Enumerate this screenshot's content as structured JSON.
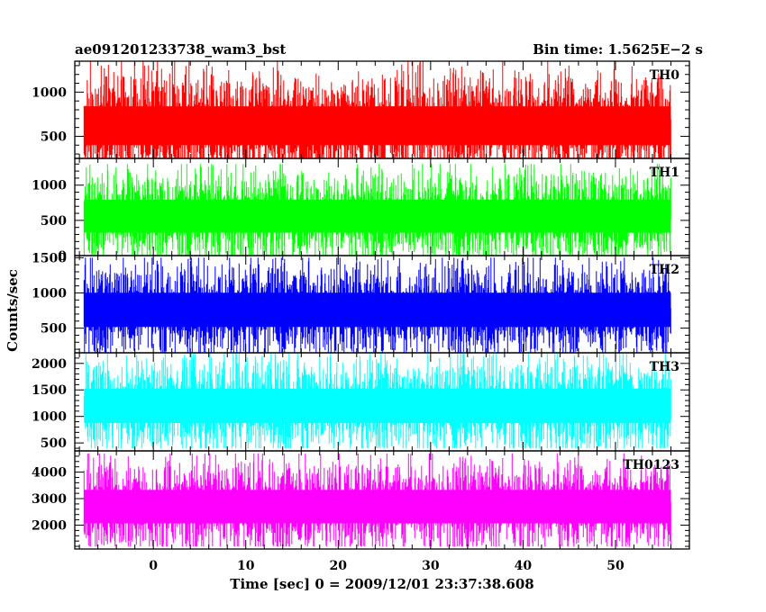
{
  "header": {
    "left": "ae091201233738_wam3_bst",
    "right": "Bin time: 1.5625E−2 s"
  },
  "chart_data": {
    "type": "line",
    "title": "ae091201233738_wam3_bst",
    "subtitle": "Bin time: 1.5625E−2 s",
    "xlabel": "Time [sec] 0 = 2009/12/01 23:37:38.608",
    "ylabel": "Counts/sec",
    "xlim": [
      -8.5,
      58
    ],
    "data_x_range": [
      -7.5,
      56
    ],
    "x_ticks": [
      0,
      10,
      20,
      30,
      40,
      50
    ],
    "x_tick_labels": [
      "0",
      "10",
      "20",
      "30",
      "40",
      "50"
    ],
    "panels": [
      {
        "name": "TH0",
        "color": "#ff0000",
        "ylim": [
          250,
          1350
        ],
        "y_ticks": [
          500,
          1000
        ],
        "y_tick_labels": [
          "500",
          "1000"
        ],
        "level_range": [
          130,
          1350
        ],
        "typical_mean": 620
      },
      {
        "name": "TH1",
        "color": "#00ff00",
        "ylim": [
          0,
          1380
        ],
        "y_ticks": [
          0,
          500,
          1000
        ],
        "y_tick_labels": [
          "0",
          "500",
          "1000"
        ],
        "level_range": [
          0,
          1300
        ],
        "typical_mean": 560
      },
      {
        "name": "TH2",
        "color": "#0000ff",
        "ylim": [
          150,
          1530
        ],
        "y_ticks": [
          500,
          1000,
          1500
        ],
        "y_tick_labels": [
          "500",
          "1000",
          "1500"
        ],
        "level_range": [
          150,
          1500
        ],
        "typical_mean": 760
      },
      {
        "name": "TH3",
        "color": "#00ffff",
        "ylim": [
          350,
          2200
        ],
        "y_ticks": [
          500,
          1000,
          1500,
          2000
        ],
        "y_tick_labels": [
          "500",
          "1000",
          "1500",
          "2000"
        ],
        "level_range": [
          400,
          2200
        ],
        "typical_mean": 1200
      },
      {
        "name": "TH0123",
        "color": "#ff00ff",
        "ylim": [
          1100,
          4800
        ],
        "y_ticks": [
          2000,
          3000,
          4000
        ],
        "y_tick_labels": [
          "2000",
          "3000",
          "4000"
        ],
        "level_range": [
          1200,
          4700
        ],
        "typical_mean": 2700
      }
    ]
  }
}
